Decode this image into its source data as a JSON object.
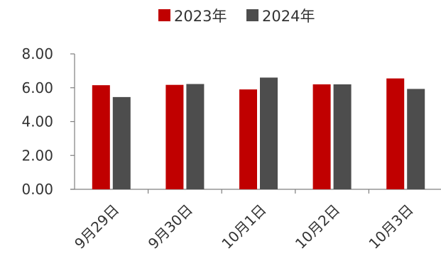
{
  "chart_data": {
    "type": "bar",
    "categories": [
      "9月29日",
      "9月30日",
      "10月1日",
      "10月2日",
      "10月3日"
    ],
    "series": [
      {
        "name": "2023年",
        "color": "#C00000",
        "values": [
          6.15,
          6.17,
          5.9,
          6.2,
          6.55
        ]
      },
      {
        "name": "2024年",
        "color": "#4D4D4D",
        "values": [
          5.45,
          6.22,
          6.6,
          6.2,
          5.93
        ]
      }
    ],
    "ylim": [
      0,
      8
    ],
    "yticks": [
      "0.00",
      "2.00",
      "4.00",
      "6.00",
      "8.00"
    ],
    "grid": false,
    "legend_position": "top-center"
  }
}
